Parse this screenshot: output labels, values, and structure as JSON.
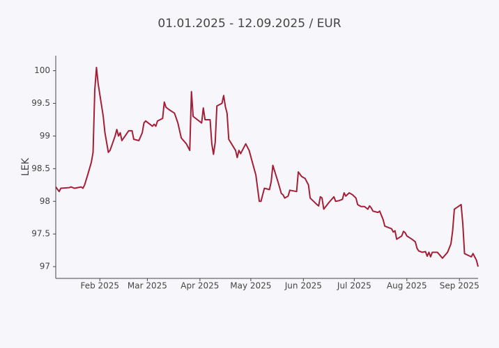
{
  "chart_data": {
    "type": "line",
    "title": "01.01.2025 - 12.09.2025 / EUR",
    "y_label": "LEK",
    "x": [
      "2025-01-06",
      "2025-01-08",
      "2025-01-09",
      "2025-01-14",
      "2025-01-15",
      "2025-01-17",
      "2025-01-21",
      "2025-01-22",
      "2025-01-23",
      "2025-01-25",
      "2025-01-27",
      "2025-01-28",
      "2025-01-29",
      "2025-01-30",
      "2025-01-31",
      "2025-02-03",
      "2025-02-04",
      "2025-02-06",
      "2025-02-07",
      "2025-02-10",
      "2025-02-11",
      "2025-02-12",
      "2025-02-13",
      "2025-02-14",
      "2025-02-18",
      "2025-02-20",
      "2025-02-21",
      "2025-02-24",
      "2025-02-26",
      "2025-02-27",
      "2025-02-28",
      "2025-03-04",
      "2025-03-05",
      "2025-03-06",
      "2025-03-07",
      "2025-03-10",
      "2025-03-11",
      "2025-03-12",
      "2025-03-14",
      "2025-03-17",
      "2025-03-19",
      "2025-03-21",
      "2025-03-24",
      "2025-03-26",
      "2025-03-27",
      "2025-03-28",
      "2025-04-02",
      "2025-04-03",
      "2025-04-04",
      "2025-04-07",
      "2025-04-08",
      "2025-04-09",
      "2025-04-10",
      "2025-04-11",
      "2025-04-14",
      "2025-04-15",
      "2025-04-16",
      "2025-04-17",
      "2025-04-18",
      "2025-04-22",
      "2025-04-23",
      "2025-04-24",
      "2025-04-25",
      "2025-04-26",
      "2025-04-28",
      "2025-04-30",
      "2025-05-04",
      "2025-05-05",
      "2025-05-06",
      "2025-05-07",
      "2025-05-09",
      "2025-05-12",
      "2025-05-13",
      "2025-05-14",
      "2025-05-17",
      "2025-05-19",
      "2025-05-20",
      "2025-05-21",
      "2025-05-23",
      "2025-05-24",
      "2025-05-28",
      "2025-05-29",
      "2025-05-31",
      "2025-06-02",
      "2025-06-04",
      "2025-06-05",
      "2025-06-09",
      "2025-06-10",
      "2025-06-11",
      "2025-06-12",
      "2025-06-13",
      "2025-06-16",
      "2025-06-19",
      "2025-06-20",
      "2025-06-22",
      "2025-06-24",
      "2025-06-25",
      "2025-06-26",
      "2025-06-28",
      "2025-06-30",
      "2025-07-02",
      "2025-07-03",
      "2025-07-05",
      "2025-07-07",
      "2025-07-09",
      "2025-07-10",
      "2025-07-11",
      "2025-07-12",
      "2025-07-15",
      "2025-07-16",
      "2025-07-18",
      "2025-07-19",
      "2025-07-21",
      "2025-07-23",
      "2025-07-24",
      "2025-07-25",
      "2025-07-26",
      "2025-07-29",
      "2025-07-30",
      "2025-07-31",
      "2025-08-01",
      "2025-08-04",
      "2025-08-06",
      "2025-08-07",
      "2025-08-08",
      "2025-08-10",
      "2025-08-12",
      "2025-08-13",
      "2025-08-14",
      "2025-08-15",
      "2025-08-16",
      "2025-08-19",
      "2025-08-22",
      "2025-08-25",
      "2025-08-27",
      "2025-08-28",
      "2025-08-29",
      "2025-09-02",
      "2025-09-03",
      "2025-09-04",
      "2025-09-08",
      "2025-09-09",
      "2025-09-11",
      "2025-09-12"
    ],
    "series": [
      {
        "name": "EUR",
        "color": "#a51e36",
        "values": [
          98.22,
          98.15,
          98.2,
          98.21,
          98.22,
          98.2,
          98.22,
          98.2,
          98.25,
          98.42,
          98.6,
          98.75,
          99.7,
          100.05,
          99.8,
          99.3,
          99.05,
          98.75,
          98.78,
          99.0,
          99.1,
          99.0,
          99.05,
          98.93,
          99.08,
          99.08,
          98.95,
          98.93,
          99.05,
          99.2,
          99.23,
          99.15,
          99.18,
          99.15,
          99.23,
          99.27,
          99.52,
          99.44,
          99.4,
          99.35,
          99.2,
          98.97,
          98.88,
          98.78,
          99.68,
          99.3,
          99.2,
          99.43,
          99.25,
          99.25,
          98.88,
          98.72,
          98.9,
          99.46,
          99.5,
          99.62,
          99.45,
          99.35,
          98.95,
          98.78,
          98.67,
          98.78,
          98.73,
          98.78,
          98.88,
          98.78,
          98.4,
          98.2,
          98.0,
          98.0,
          98.2,
          98.18,
          98.3,
          98.55,
          98.3,
          98.12,
          98.1,
          98.05,
          98.08,
          98.17,
          98.15,
          98.45,
          98.38,
          98.35,
          98.25,
          98.05,
          97.95,
          97.93,
          98.07,
          98.05,
          97.88,
          97.98,
          98.07,
          98.0,
          98.01,
          98.03,
          98.13,
          98.08,
          98.13,
          98.1,
          98.05,
          97.95,
          97.92,
          97.92,
          97.88,
          97.93,
          97.9,
          97.85,
          97.83,
          97.85,
          97.72,
          97.62,
          97.6,
          97.58,
          97.53,
          97.55,
          97.42,
          97.47,
          97.54,
          97.52,
          97.47,
          97.42,
          97.38,
          97.28,
          97.24,
          97.22,
          97.23,
          97.16,
          97.22,
          97.15,
          97.22,
          97.22,
          97.13,
          97.22,
          97.35,
          97.55,
          97.88,
          97.95,
          97.65,
          97.2,
          97.15,
          97.2,
          97.1,
          97.0
        ]
      }
    ],
    "xlim": [
      "2025-01-06",
      "2025-09-12"
    ],
    "xticks": [
      {
        "value": "2025-02-01",
        "label": "Feb 2025"
      },
      {
        "value": "2025-03-01",
        "label": "Mar 2025"
      },
      {
        "value": "2025-04-01",
        "label": "Apr 2025"
      },
      {
        "value": "2025-05-01",
        "label": "May 2025"
      },
      {
        "value": "2025-06-01",
        "label": "Jun 2025"
      },
      {
        "value": "2025-07-01",
        "label": "Jul 2025"
      },
      {
        "value": "2025-08-01",
        "label": "Aug 2025"
      },
      {
        "value": "2025-09-01",
        "label": "Sep 2025"
      }
    ],
    "ylim": [
      96.82,
      100.23
    ],
    "yticks": [
      97,
      97.5,
      98,
      98.5,
      99,
      99.5,
      100
    ],
    "grid": false
  }
}
